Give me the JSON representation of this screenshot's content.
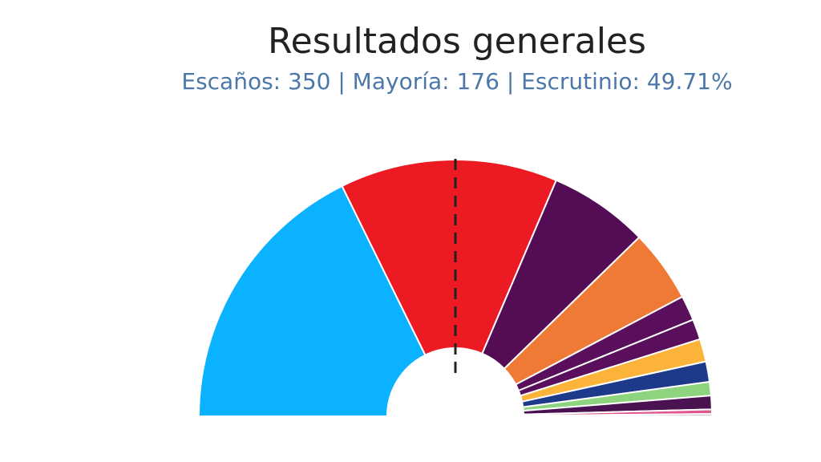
{
  "chart_data": {
    "type": "parliament",
    "title": "Resultados generales",
    "subtitle": "Escaños: 350 | Mayoría: 176 | Escrutinio: 49.71%",
    "values": [
      124,
      96,
      44,
      32,
      11,
      9,
      10,
      9,
      6,
      6,
      2,
      1
    ],
    "colors": [
      "#0bb2ff",
      "#ec1b23",
      "#540d55",
      "#ef7a36",
      "#5a0f5c",
      "#5a0f5c",
      "#fbb33a",
      "#1d3a8a",
      "#8ed47f",
      "#4a1250",
      "#e0568f",
      "#b0b0b0"
    ]
  }
}
